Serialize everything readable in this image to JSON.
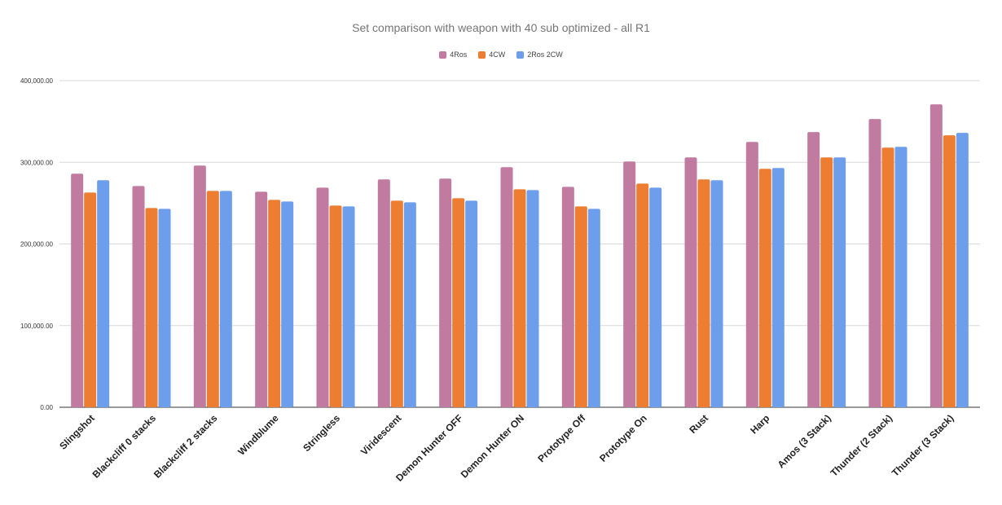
{
  "chart_data": {
    "type": "bar",
    "title": "Set comparison with weapon  with 40 sub optimized - all R1",
    "xlabel": "",
    "ylabel": "",
    "ylim": [
      0,
      400000
    ],
    "yticks": [
      "0.00",
      "100,000.00",
      "200,000.00",
      "300,000.00",
      "400,000.00"
    ],
    "ytick_values": [
      0,
      100000,
      200000,
      300000,
      400000
    ],
    "grid": true,
    "legend_position": "top-center",
    "categories": [
      "Slingshot",
      "Blackcliff 0 stacks",
      "Blackcliff 2 stacks",
      "Windblume",
      "Stringless",
      "Viridescent",
      "Demon Hunter OFF",
      "Demon Hunter ON",
      "Prototype Off",
      "Prototype On",
      "Rust",
      "Harp",
      "Amos (3 Stack)",
      "Thunder (2 Stack)",
      "Thunder (3 Stack)"
    ],
    "series": [
      {
        "name": "4Ros",
        "color": "#c27ba0",
        "values": [
          286000,
          271000,
          296000,
          264000,
          269000,
          279000,
          280000,
          294000,
          270000,
          301000,
          306000,
          325000,
          337000,
          353000,
          371000
        ]
      },
      {
        "name": "4CW",
        "color": "#ed7d31",
        "values": [
          263000,
          244000,
          265000,
          254000,
          247000,
          253000,
          256000,
          267000,
          246000,
          274000,
          279000,
          292000,
          306000,
          318000,
          333000
        ]
      },
      {
        "name": "2Ros 2CW",
        "color": "#6d9eeb",
        "values": [
          278000,
          243000,
          265000,
          252000,
          246000,
          251000,
          253000,
          266000,
          243000,
          269000,
          278000,
          293000,
          306000,
          319000,
          336000
        ]
      }
    ]
  }
}
